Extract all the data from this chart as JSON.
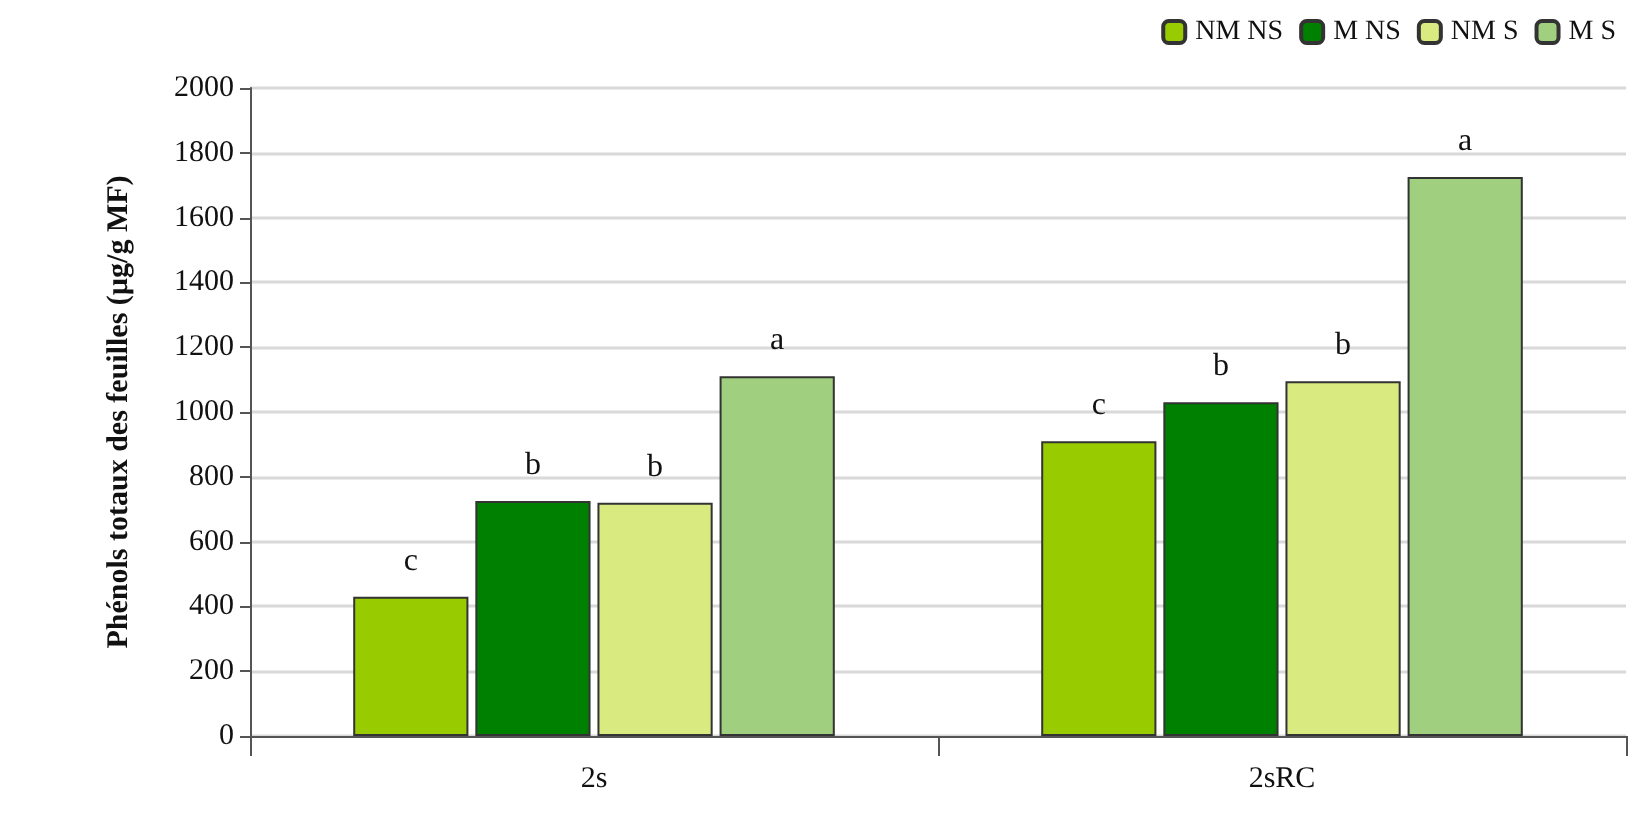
{
  "chart_data": {
    "type": "bar",
    "ylabel": "Phénols totaux des feuilles (µg/g MF)",
    "categories": [
      "2s",
      "2sRC"
    ],
    "series": [
      {
        "name": "NM NS",
        "color": "#99cc00",
        "values": [
          430,
          910
        ],
        "value_labels": [
          "c",
          "c"
        ]
      },
      {
        "name": "M NS",
        "color": "#008000",
        "values": [
          725,
          1030
        ],
        "value_labels": [
          "b",
          "b"
        ]
      },
      {
        "name": "NM S",
        "color": "#d9ea80",
        "values": [
          720,
          1095
        ],
        "value_labels": [
          "b",
          "b"
        ]
      },
      {
        "name": "M S",
        "color": "#a0cf80",
        "values": [
          1110,
          1725
        ],
        "value_labels": [
          "a",
          "a"
        ]
      }
    ],
    "ylim": [
      0,
      2000
    ],
    "yticks": [
      0,
      200,
      400,
      600,
      800,
      1000,
      1200,
      1400,
      1600,
      1800,
      2000
    ],
    "grid": "y",
    "legend": "top right"
  }
}
